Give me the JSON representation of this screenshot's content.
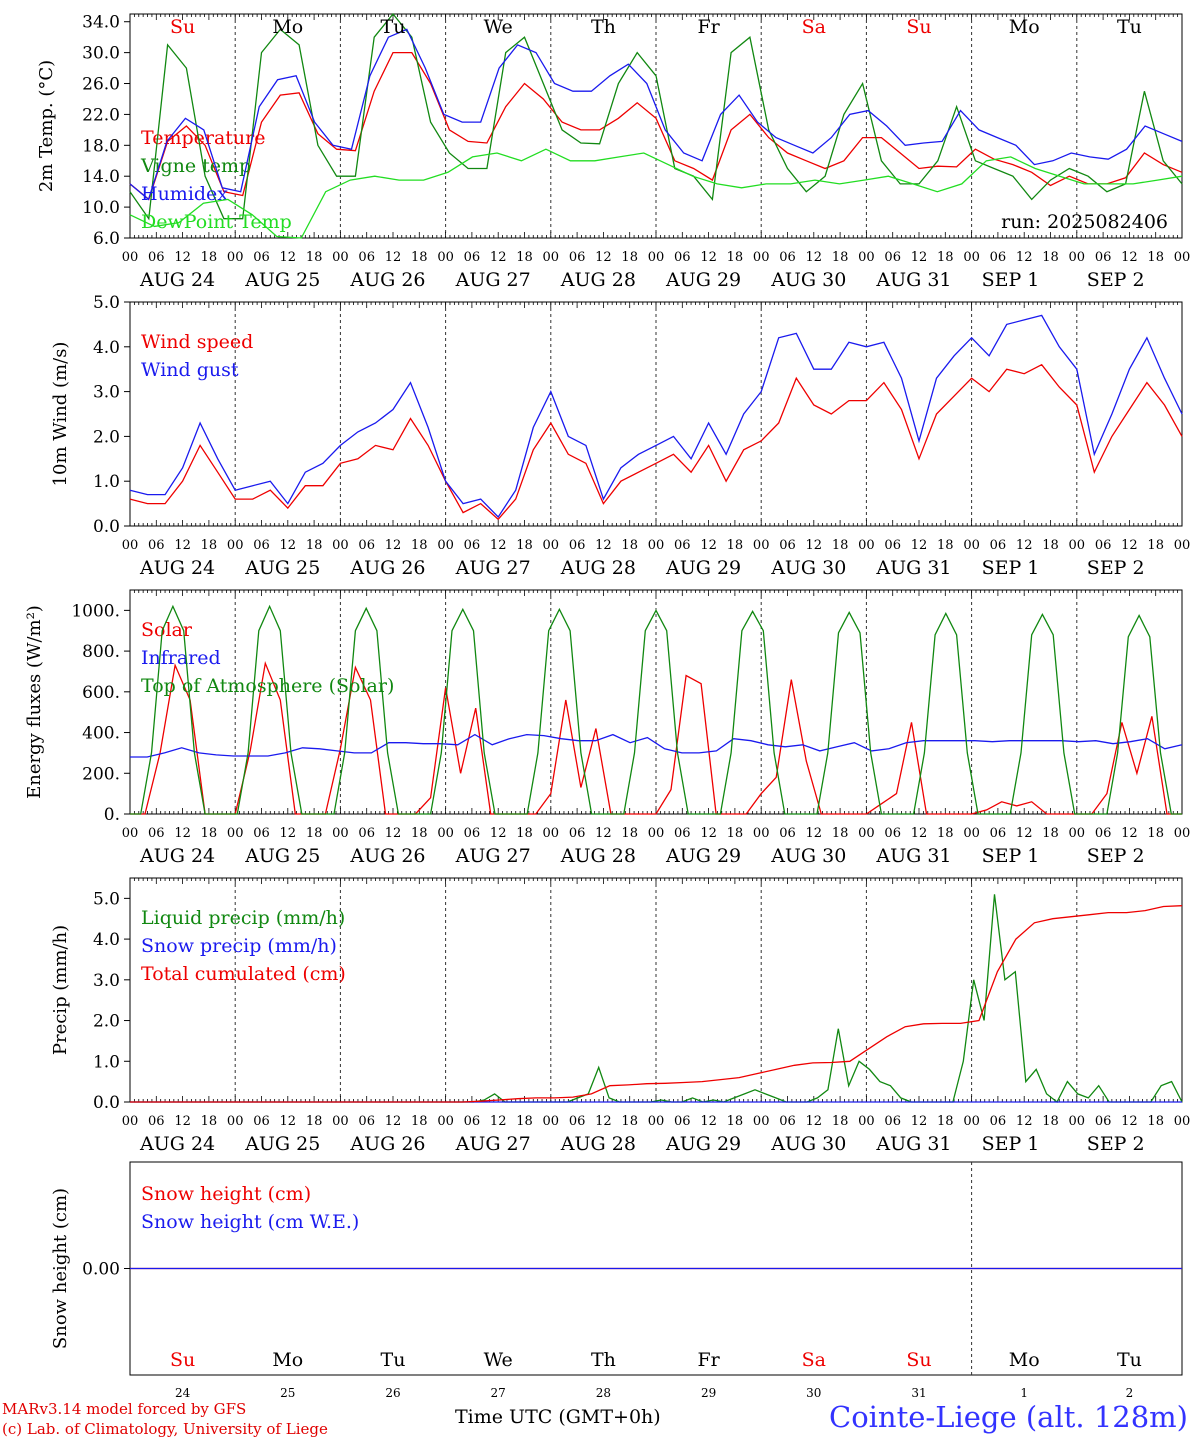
{
  "footer": {
    "credit_line1": "MARv3.14 model forced by GFS",
    "credit_line2": "(c) Lab. of Climatology, University of Liege",
    "time_label": "Time UTC (GMT+0h)",
    "station": "Cointe-Liege (alt. 128m)"
  },
  "chart_data": {
    "days": [
      "Su",
      "Mo",
      "Tu",
      "We",
      "Th",
      "Fr",
      "Sa",
      "Su",
      "Mo",
      "Tu"
    ],
    "weekend_days": [
      0,
      6,
      7
    ],
    "dates": [
      "AUG 24",
      "AUG 25",
      "AUG 26",
      "AUG 27",
      "AUG 28",
      "AUG 29",
      "AUG 30",
      "AUG 31",
      "SEP  1",
      "SEP  2"
    ],
    "day_numbers": [
      "24",
      "25",
      "26",
      "27",
      "28",
      "29",
      "30",
      "31",
      "1",
      "2"
    ],
    "hour_ticks": [
      "00",
      "06",
      "12",
      "18"
    ],
    "run_label": "run: 2025082406",
    "colors": {
      "red": "#ee0000",
      "green": "#118811",
      "blue": "#1a1aee",
      "light_green": "#22dd22"
    },
    "panels": [
      {
        "type": "line",
        "ylabel": "2m Temp. (°C)",
        "ylim": [
          6,
          35
        ],
        "yticks": [
          6,
          10,
          14,
          18,
          22,
          26,
          30,
          34
        ],
        "ytick_labels": [
          "6.0",
          "10.0",
          "14.0",
          "18.0",
          "22.0",
          "26.0",
          "30.0",
          "34.0"
        ],
        "series": [
          {
            "name": "Temperature",
            "color": "#ee0000",
            "values": [
              13,
              11,
              18.5,
              20.5,
              18,
              12,
              11.5,
              21,
              24.5,
              24.8,
              19.5,
              17.5,
              17.3,
              25,
              30,
              30,
              26,
              20,
              18.5,
              18.3,
              23,
              26,
              24,
              21,
              20,
              20,
              21.5,
              23.5,
              21.5,
              16,
              15,
              13.5,
              20,
              22,
              19,
              17,
              16,
              15,
              16,
              19,
              19,
              17,
              15,
              15.3,
              15.2,
              17.5,
              16.2,
              15.5,
              14.5,
              12.8,
              14,
              13,
              13,
              13.8,
              17,
              15.5,
              14.5
            ]
          },
          {
            "name": "Vigne temp",
            "color": "#118811",
            "values": [
              12,
              8.5,
              31,
              28,
              14,
              8.5,
              8.5,
              30,
              33,
              31,
              18,
              14,
              14,
              32,
              35,
              32,
              21,
              17,
              15,
              15,
              30,
              32,
              26,
              20,
              18.3,
              18.2,
              26,
              30,
              27,
              15,
              14,
              11,
              30,
              32,
              20,
              15,
              12,
              14,
              22,
              26,
              16,
              13,
              13,
              16,
              23,
              16,
              15,
              14,
              11,
              13.5,
              15,
              14,
              12,
              13,
              25,
              16,
              13
            ]
          },
          {
            "name": "Humidex",
            "color": "#1a1aee",
            "values": [
              13,
              11,
              18.5,
              21.5,
              20,
              12.5,
              12,
              23,
              26.5,
              27,
              21,
              18,
              17.5,
              27,
              32,
              33,
              28,
              22,
              21,
              21,
              28,
              31,
              30,
              26,
              25,
              25,
              27,
              28.5,
              26,
              20,
              17,
              16,
              22,
              24.5,
              21,
              19,
              18,
              17,
              19,
              22,
              22.5,
              20.5,
              18,
              18.3,
              18.5,
              22.5,
              20,
              19,
              18,
              15.5,
              16,
              17,
              16.5,
              16.2,
              17.5,
              20.5,
              19.5,
              18.5
            ]
          },
          {
            "name": "DewPoint Temp",
            "color": "#22dd22",
            "values": [
              9,
              7.5,
              8,
              10.5,
              11,
              9,
              6.2,
              6,
              12,
              13.5,
              14,
              13.5,
              13.5,
              14.5,
              16.5,
              17,
              16,
              17.5,
              16,
              16,
              16.5,
              17,
              15.5,
              14,
              13,
              12.5,
              13,
              13,
              13.5,
              13,
              13.5,
              14,
              13,
              12,
              13,
              16,
              16.5,
              15,
              14,
              13,
              13,
              13,
              13.5,
              14
            ]
          }
        ]
      },
      {
        "type": "line",
        "ylabel": "10m Wind (m/s)",
        "ylim": [
          0,
          5
        ],
        "yticks": [
          0,
          1,
          2,
          3,
          4,
          5
        ],
        "ytick_labels": [
          "0.0",
          "1.0",
          "2.0",
          "3.0",
          "4.0",
          "5.0"
        ],
        "series": [
          {
            "name": "Wind speed",
            "color": "#ee0000",
            "values": [
              0.6,
              0.5,
              0.5,
              1.0,
              1.8,
              1.2,
              0.6,
              0.6,
              0.8,
              0.4,
              0.9,
              0.9,
              1.4,
              1.5,
              1.8,
              1.7,
              2.4,
              1.8,
              1.0,
              0.3,
              0.5,
              0.15,
              0.6,
              1.7,
              2.3,
              1.6,
              1.4,
              0.5,
              1.0,
              1.2,
              1.4,
              1.6,
              1.2,
              1.8,
              1.0,
              1.7,
              1.9,
              2.3,
              3.3,
              2.7,
              2.5,
              2.8,
              2.8,
              3.2,
              2.6,
              1.5,
              2.5,
              2.9,
              3.3,
              3.0,
              3.5,
              3.4,
              3.6,
              3.1,
              2.7,
              1.2,
              2.0,
              2.6,
              3.2,
              2.7,
              2.0
            ]
          },
          {
            "name": "Wind gust",
            "color": "#1a1aee",
            "values": [
              0.8,
              0.7,
              0.7,
              1.3,
              2.3,
              1.5,
              0.8,
              0.9,
              1.0,
              0.5,
              1.2,
              1.4,
              1.8,
              2.1,
              2.3,
              2.6,
              3.2,
              2.2,
              1.0,
              0.5,
              0.6,
              0.2,
              0.8,
              2.2,
              3.0,
              2.0,
              1.8,
              0.6,
              1.3,
              1.6,
              1.8,
              2.0,
              1.5,
              2.3,
              1.6,
              2.5,
              3.0,
              4.2,
              4.3,
              3.5,
              3.5,
              4.1,
              4.0,
              4.1,
              3.3,
              1.9,
              3.3,
              3.8,
              4.2,
              3.8,
              4.5,
              4.6,
              4.7,
              4.0,
              3.5,
              1.6,
              2.5,
              3.5,
              4.2,
              3.3,
              2.5
            ]
          }
        ]
      },
      {
        "type": "line",
        "ylabel": "Energy fluxes (W/m²)",
        "ylim": [
          0,
          1100
        ],
        "yticks": [
          0,
          200,
          400,
          600,
          800,
          1000
        ],
        "ytick_labels": [
          "0.",
          "200.",
          "400.",
          "600.",
          "800.",
          "1000."
        ],
        "series": [
          {
            "name": "Solar",
            "color": "#ee0000",
            "values": [
              0,
              0,
              300,
              730,
              560,
              0,
              0,
              0,
              310,
              740,
              560,
              0,
              0,
              0,
              320,
              720,
              560,
              0,
              0,
              0,
              80,
              620,
              200,
              520,
              0,
              0,
              0,
              0,
              100,
              560,
              130,
              420,
              0,
              0,
              0,
              0,
              120,
              680,
              640,
              0,
              0,
              0,
              100,
              180,
              660,
              260,
              0,
              0,
              0,
              0,
              50,
              100,
              450,
              0,
              0,
              0,
              0,
              20,
              60,
              40,
              60,
              0,
              0,
              0,
              0,
              100,
              450,
              200,
              480,
              0,
              0
            ]
          },
          {
            "name": "Infrared",
            "color": "#1a1aee",
            "values": [
              280,
              280,
              300,
              325,
              300,
              290,
              285,
              285,
              285,
              300,
              325,
              320,
              310,
              300,
              300,
              350,
              350,
              345,
              345,
              340,
              390,
              340,
              370,
              390,
              385,
              370,
              360,
              360,
              390,
              350,
              375,
              320,
              300,
              300,
              310,
              370,
              360,
              340,
              330,
              340,
              310,
              330,
              350,
              310,
              320,
              350,
              360,
              360,
              360,
              360,
              355,
              360,
              360,
              360,
              360,
              355,
              360,
              345,
              355,
              370,
              320,
              340
            ]
          },
          {
            "name": "Top of Atmosphere (Solar)",
            "color": "#118811",
            "values": [
              0,
              0,
              300,
              900,
              1020,
              900,
              300,
              0,
              0,
              0,
              0,
              300,
              900,
              1020,
              900,
              300,
              0,
              0,
              0,
              0,
              300,
              900,
              1010,
              900,
              300,
              0,
              0,
              0,
              0,
              300,
              900,
              1005,
              900,
              300,
              0,
              0,
              0,
              0,
              300,
              900,
              1005,
              900,
              300,
              0,
              0,
              0,
              0,
              300,
              900,
              1000,
              900,
              300,
              0,
              0,
              0,
              0,
              300,
              900,
              995,
              900,
              300,
              0,
              0,
              0,
              0,
              300,
              890,
              990,
              890,
              300,
              0,
              0,
              0,
              0,
              300,
              880,
              985,
              880,
              300,
              0,
              0,
              0,
              0,
              300,
              880,
              980,
              880,
              300,
              0,
              0,
              0,
              0,
              300,
              870,
              975,
              870,
              300,
              0,
              0
            ]
          }
        ]
      },
      {
        "type": "line",
        "ylabel": "Precip (mm/h)",
        "ylim": [
          0,
          5.5
        ],
        "yticks": [
          0,
          1,
          2,
          3,
          4,
          5
        ],
        "ytick_labels": [
          "0.0",
          "1.0",
          "2.0",
          "3.0",
          "4.0",
          "5.0"
        ],
        "series": [
          {
            "name": "Liquid precip (mm/h)",
            "color": "#118811",
            "values": [
              0,
              0,
              0,
              0,
              0,
              0,
              0,
              0,
              0,
              0,
              0,
              0,
              0,
              0,
              0,
              0,
              0,
              0,
              0,
              0,
              0,
              0,
              0,
              0,
              0,
              0,
              0,
              0,
              0,
              0,
              0,
              0,
              0,
              0,
              0.05,
              0.2,
              0,
              0,
              0,
              0,
              0,
              0,
              0,
              0.1,
              0.2,
              0.85,
              0.1,
              0,
              0,
              0,
              0,
              0.05,
              0,
              0,
              0.1,
              0,
              0.05,
              0,
              0.1,
              0.2,
              0.3,
              0.2,
              0.1,
              0,
              0,
              0,
              0.1,
              0.3,
              1.8,
              0.4,
              1.0,
              0.8,
              0.5,
              0.4,
              0.1,
              0,
              0,
              0,
              0,
              0,
              1.0,
              3.0,
              2.0,
              5.1,
              3.0,
              3.2,
              0.5,
              0.8,
              0.2,
              0,
              0.5,
              0.2,
              0.1,
              0.4,
              0,
              0,
              0,
              0,
              0,
              0.4,
              0.5,
              0
            ]
          },
          {
            "name": "Snow precip (mm/h)",
            "color": "#1a1aee",
            "values": [
              0,
              0,
              0,
              0,
              0,
              0,
              0,
              0,
              0,
              0,
              0,
              0,
              0,
              0,
              0,
              0,
              0,
              0,
              0,
              0,
              0,
              0,
              0,
              0,
              0,
              0,
              0,
              0,
              0,
              0,
              0,
              0,
              0,
              0,
              0,
              0,
              0,
              0,
              0,
              0,
              0,
              0,
              0,
              0
            ]
          },
          {
            "name": "Total cumulated (cm)",
            "color": "#ee0000",
            "values": [
              0,
              0,
              0,
              0,
              0,
              0,
              0,
              0,
              0,
              0,
              0,
              0,
              0,
              0,
              0,
              0,
              0,
              0,
              0,
              0.02,
              0.05,
              0.08,
              0.1,
              0.1,
              0.12,
              0.2,
              0.4,
              0.42,
              0.45,
              0.46,
              0.48,
              0.5,
              0.55,
              0.6,
              0.7,
              0.8,
              0.9,
              0.96,
              0.97,
              1.0,
              1.3,
              1.6,
              1.85,
              1.92,
              1.93,
              1.93,
              2.0,
              3.2,
              4.0,
              4.4,
              4.5,
              4.55,
              4.6,
              4.65,
              4.65,
              4.7,
              4.8,
              4.82
            ]
          }
        ]
      },
      {
        "type": "line",
        "ylabel": "Snow height (cm)",
        "ylim": [
          -0.3,
          0.3
        ],
        "yticks": [
          0
        ],
        "ytick_labels": [
          "0.00"
        ],
        "series": [
          {
            "name": "Snow height (cm)",
            "color": "#ee0000",
            "values": [
              0,
              0
            ]
          },
          {
            "name": "Snow height (cm W.E.)",
            "color": "#1a1aee",
            "values": [
              0,
              0
            ]
          }
        ]
      }
    ]
  }
}
